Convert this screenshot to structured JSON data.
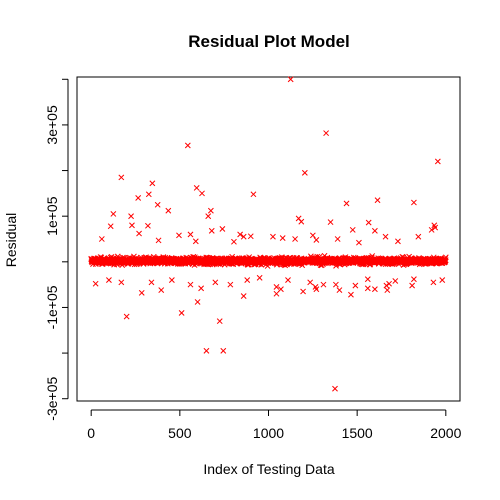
{
  "chart_data": {
    "type": "scatter",
    "title": "Residual Plot Model",
    "xlabel": "Index of Testing Data",
    "ylabel": "Residual",
    "xlim": [
      -80,
      2080
    ],
    "ylim": [
      -305000,
      405000
    ],
    "x_ticks": [
      0,
      500,
      1000,
      1500,
      2000
    ],
    "x_tick_labels": [
      "0",
      "500",
      "1000",
      "1500",
      "2000"
    ],
    "y_ticks": [
      -300000,
      -100000,
      100000,
      300000
    ],
    "y_tick_labels": [
      "-3e+05",
      "-1e+05",
      "1e+05",
      "3e+05"
    ],
    "marker": "x",
    "color": "#ff0000",
    "grid": false,
    "legend": "none",
    "series": [
      {
        "points": [
          [
            1125,
            400000
          ],
          [
            1325,
            282000
          ],
          [
            1955,
            220000
          ],
          [
            545,
            255000
          ],
          [
            1205,
            195000
          ],
          [
            170,
            185000
          ],
          [
            345,
            172000
          ],
          [
            595,
            162000
          ],
          [
            625,
            150000
          ],
          [
            915,
            148000
          ],
          [
            325,
            148000
          ],
          [
            265,
            140000
          ],
          [
            1615,
            135000
          ],
          [
            1820,
            130000
          ],
          [
            1440,
            128000
          ],
          [
            375,
            125000
          ],
          [
            435,
            112000
          ],
          [
            675,
            112000
          ],
          [
            660,
            100000
          ],
          [
            125,
            105000
          ],
          [
            225,
            100000
          ],
          [
            1170,
            95000
          ],
          [
            1185,
            88000
          ],
          [
            1350,
            87000
          ],
          [
            1565,
            86000
          ],
          [
            230,
            80000
          ],
          [
            1935,
            80000
          ],
          [
            110,
            78000
          ],
          [
            320,
            79000
          ],
          [
            1940,
            75000
          ],
          [
            680,
            68000
          ],
          [
            1600,
            68000
          ],
          [
            1920,
            70000
          ],
          [
            740,
            72000
          ],
          [
            1475,
            70000
          ],
          [
            840,
            60000
          ],
          [
            560,
            60000
          ],
          [
            1845,
            55000
          ],
          [
            495,
            58000
          ],
          [
            270,
            62000
          ],
          [
            860,
            55000
          ],
          [
            1025,
            55000
          ],
          [
            1660,
            55000
          ],
          [
            900,
            56000
          ],
          [
            1080,
            52000
          ],
          [
            1150,
            50000
          ],
          [
            1390,
            50000
          ],
          [
            1270,
            48000
          ],
          [
            1730,
            45000
          ],
          [
            60,
            50000
          ],
          [
            590,
            45000
          ],
          [
            805,
            44000
          ],
          [
            1510,
            42000
          ],
          [
            1250,
            58000
          ],
          [
            380,
            47000
          ],
          [
            200,
            -120000
          ],
          [
            510,
            -112000
          ],
          [
            725,
            -130000
          ],
          [
            650,
            -195000
          ],
          [
            745,
            -195000
          ],
          [
            1375,
            -278000
          ],
          [
            600,
            -88000
          ],
          [
            1195,
            -65000
          ],
          [
            1670,
            -62000
          ],
          [
            860,
            -75000
          ],
          [
            1465,
            -72000
          ],
          [
            1045,
            -70000
          ],
          [
            285,
            -68000
          ],
          [
            395,
            -62000
          ],
          [
            1400,
            -62000
          ],
          [
            1600,
            -60000
          ],
          [
            1070,
            -60000
          ],
          [
            1270,
            -60000
          ],
          [
            620,
            -58000
          ],
          [
            1560,
            -58000
          ],
          [
            1265,
            -55000
          ],
          [
            1045,
            -55000
          ],
          [
            1810,
            -52000
          ],
          [
            1665,
            -52000
          ],
          [
            785,
            -50000
          ],
          [
            1490,
            -52000
          ],
          [
            1380,
            -50000
          ],
          [
            560,
            -50000
          ],
          [
            1310,
            -50000
          ],
          [
            25,
            -48000
          ],
          [
            1680,
            -48000
          ],
          [
            1930,
            -45000
          ],
          [
            170,
            -45000
          ],
          [
            340,
            -45000
          ],
          [
            100,
            -40000
          ],
          [
            880,
            -40000
          ],
          [
            1235,
            -45000
          ],
          [
            1715,
            -42000
          ],
          [
            1980,
            -40000
          ],
          [
            455,
            -40000
          ],
          [
            700,
            -45000
          ],
          [
            1110,
            -40000
          ],
          [
            1820,
            -38000
          ],
          [
            1560,
            -38000
          ],
          [
            950,
            -35000
          ]
        ]
      }
    ]
  }
}
